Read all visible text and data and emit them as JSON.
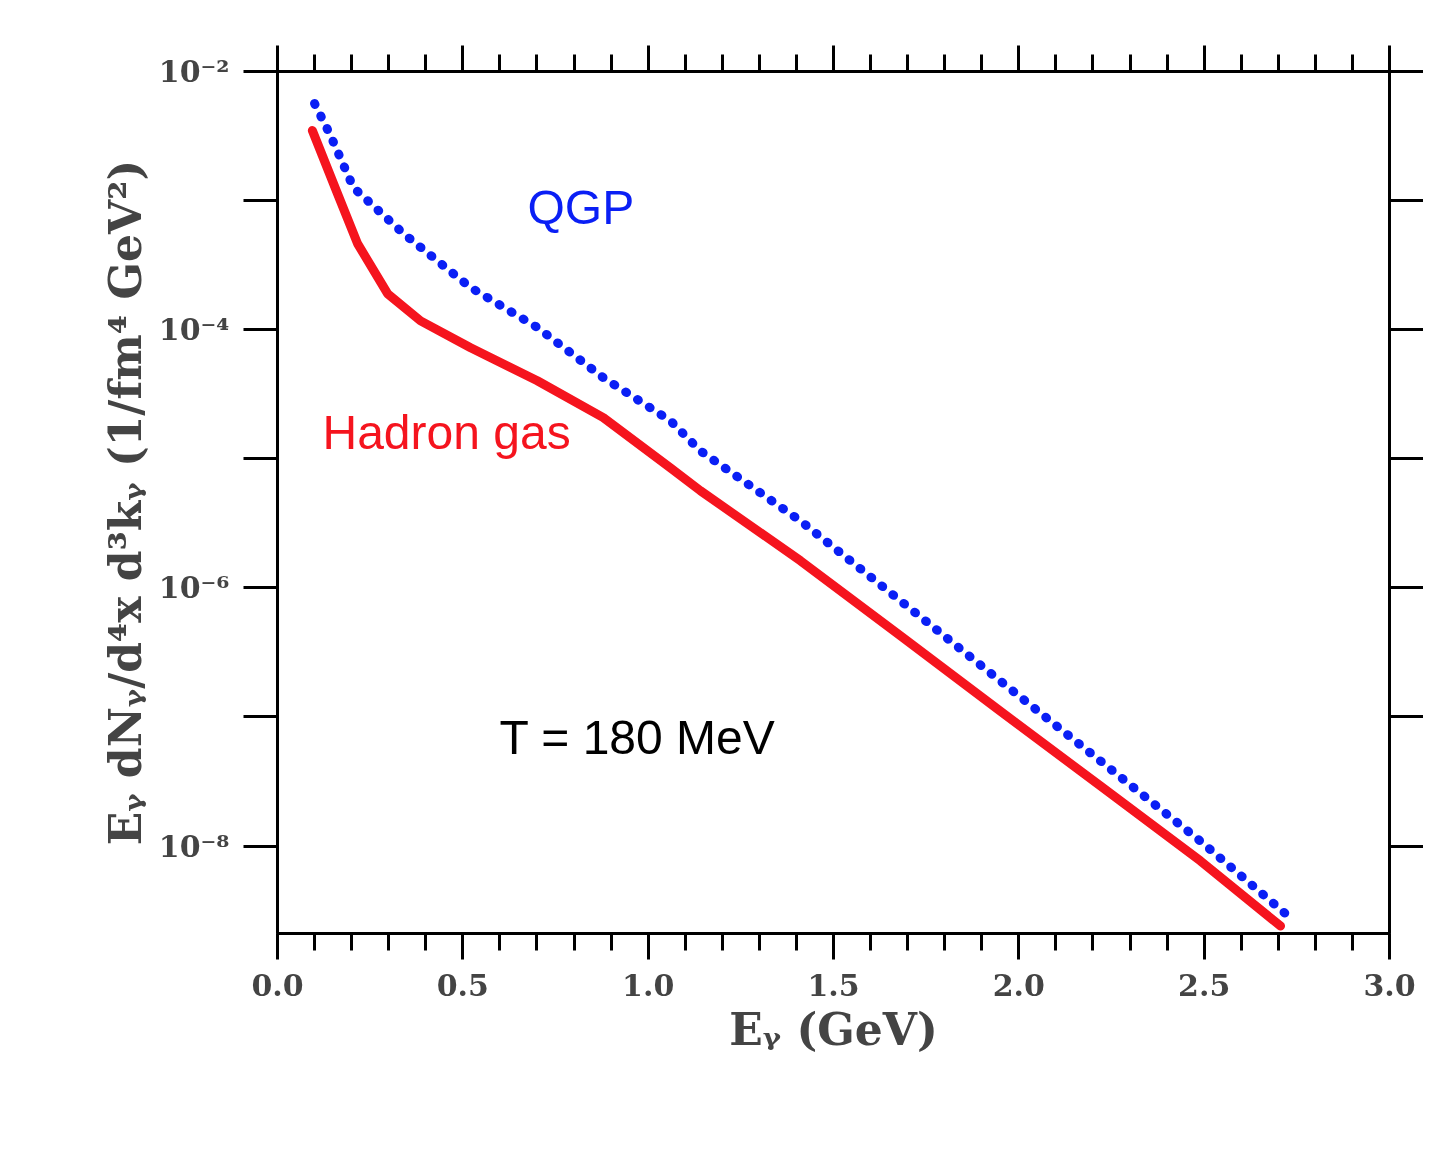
{
  "chart_data": {
    "type": "line",
    "xlabel": "Eᵧ (GeV)",
    "ylabel": "Eᵧ dNᵧ/d⁴x d³kᵧ (1/fm⁴ GeV²)",
    "log": "y",
    "grid": false,
    "marker": "none",
    "xlim": [
      0,
      3
    ],
    "xticks": [
      {
        "value": 0,
        "label": "0.0"
      },
      0.5,
      {
        "value": 1,
        "label": "1.0"
      },
      1.5,
      {
        "value": 2,
        "label": "2.0"
      },
      2.5,
      {
        "value": 3,
        "label": "3.0"
      }
    ],
    "ylim": [
      2.1e-09,
      0.01
    ],
    "yticks": [
      {
        "value": 0.01,
        "label": "10⁻²"
      },
      {
        "value": 0.0001,
        "label": "10⁻⁴"
      },
      {
        "value": 1e-06,
        "label": "10⁻⁶"
      },
      {
        "value": 1e-08,
        "label": "10⁻⁸"
      }
    ],
    "series": [
      {
        "name": "QGP",
        "color": "#0a1ff5",
        "line_style": "dotted",
        "x": [
          0.1,
          0.143,
          0.205,
          0.34,
          0.521,
          0.701,
          0.879,
          1.06,
          1.141,
          1.411,
          1.681,
          1.95,
          2.22,
          2.49,
          2.733
        ],
        "values": [
          0.00565,
          0.00319,
          0.00126,
          0.000555,
          0.000212,
          0.000104,
          4.25e-05,
          1.97e-05,
          1.15e-05,
          3.3e-06,
          7.92e-07,
          1.9e-07,
          4.56e-08,
          1.09e-08,
          2.77e-09
        ]
      },
      {
        "name": "Hadron gas",
        "color": "#f5141e",
        "line_style": "solid",
        "x": [
          0.094,
          0.162,
          0.216,
          0.297,
          0.386,
          0.521,
          0.701,
          0.879,
          1.06,
          1.141,
          1.411,
          1.681,
          1.95,
          2.22,
          2.49,
          2.706
        ],
        "values": [
          0.00349,
          0.00113,
          0.000464,
          0.00019,
          0.000117,
          7.25e-05,
          4.02e-05,
          2.08e-05,
          8.51e-06,
          5.65e-06,
          1.62e-06,
          4.25e-07,
          1.11e-07,
          2.92e-08,
          7.66e-09,
          2.4e-09
        ]
      }
    ],
    "annotations": [
      "T = 180 MeV"
    ]
  }
}
